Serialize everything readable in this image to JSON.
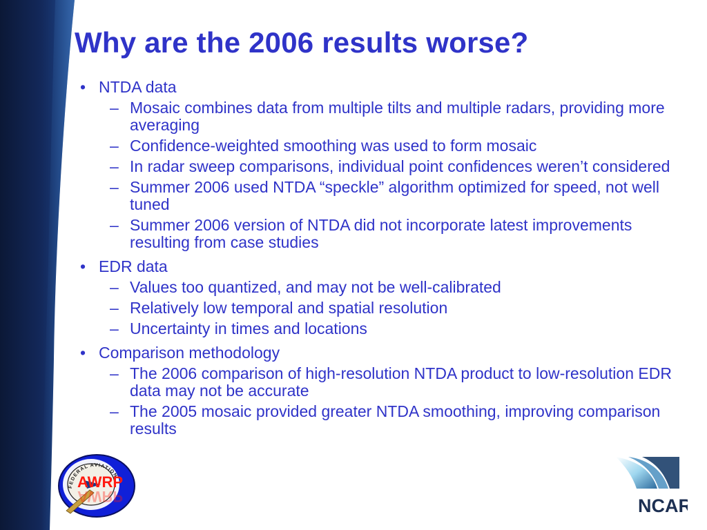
{
  "slide": {
    "title": "Why are the 2006 results worse?",
    "sections": [
      {
        "bullet": "•",
        "label": "NTDA data",
        "items": [
          {
            "dash": "–",
            "text": "Mosaic combines data from multiple tilts and multiple radars, providing more averaging"
          },
          {
            "dash": "–",
            "text": "Confidence-weighted smoothing was used to form mosaic"
          },
          {
            "dash": "–",
            "text": "In radar sweep comparisons, individual point confidences weren’t considered"
          },
          {
            "dash": "–",
            "text": "Summer 2006 used NTDA “speckle” algorithm optimized for speed, not well tuned"
          },
          {
            "dash": "–",
            "text": "Summer 2006 version of NTDA did not incorporate latest improvements resulting from case studies"
          }
        ]
      },
      {
        "bullet": "•",
        "label": "EDR data",
        "items": [
          {
            "dash": "–",
            "text": "Values too quantized, and may not be well-calibrated"
          },
          {
            "dash": "–",
            "text": "Relatively low temporal and spatial resolution"
          },
          {
            "dash": "–",
            "text": "Uncertainty in times and locations"
          }
        ]
      },
      {
        "bullet": "•",
        "label": "Comparison methodology",
        "items": [
          {
            "dash": "–",
            "text": "The 2006 comparison of high-resolution NTDA product to low-resolution EDR data may not be accurate"
          },
          {
            "dash": "–",
            "text": "The 2005 mosaic provided greater NTDA smoothing, improving comparison results"
          }
        ]
      }
    ]
  },
  "logos": {
    "left_logo_text": "AWRP",
    "left_logo_ring_text": "FEDERAL AVIATION",
    "right_logo_text": "NCAR"
  },
  "colors": {
    "title": "#2f33c8",
    "body_text": "#2f33c8",
    "band_dark": "#0b1836",
    "band_mid": "#1f4a90",
    "band_light": "#2f6ab0",
    "awrp_blue": "#1020d8",
    "awrp_red": "#ff1a10",
    "ncar_text": "#1c2f52",
    "ncar_light": "#9fd7ef"
  }
}
